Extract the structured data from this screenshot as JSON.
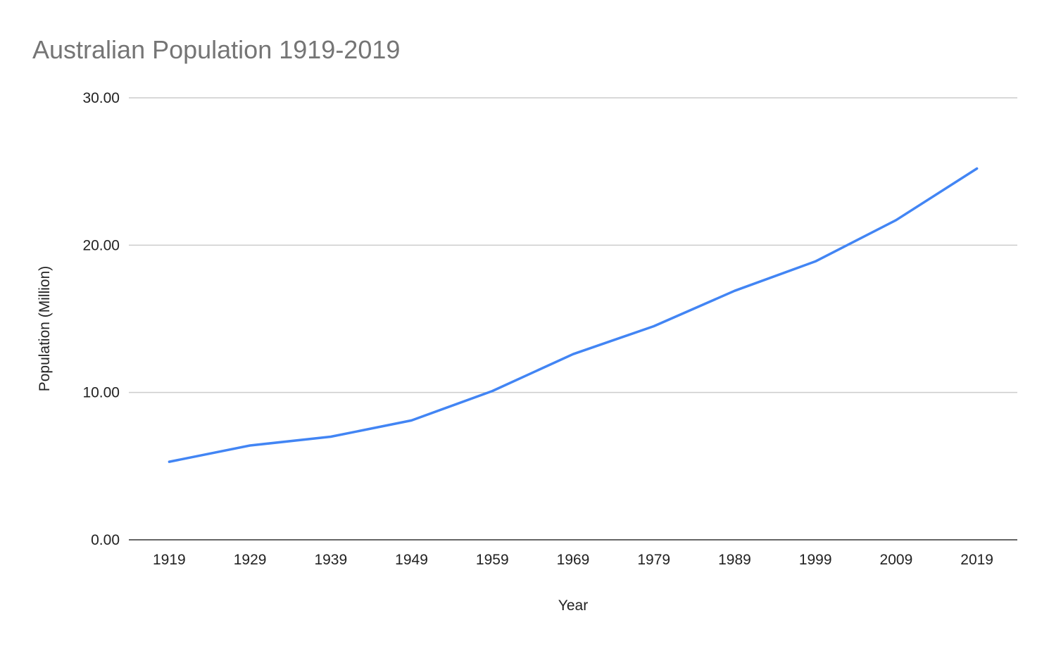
{
  "chart_data": {
    "type": "line",
    "title": "Australian Population 1919-2019",
    "xlabel": "Year",
    "ylabel": "Population (Million)",
    "ylim": [
      0,
      30
    ],
    "y_ticks": [
      "0.00",
      "10.00",
      "20.00",
      "30.00"
    ],
    "categories": [
      "1919",
      "1929",
      "1939",
      "1949",
      "1959",
      "1969",
      "1979",
      "1989",
      "1999",
      "2009",
      "2019"
    ],
    "series": [
      {
        "values": [
          5.3,
          6.4,
          7.0,
          8.1,
          10.1,
          12.6,
          14.5,
          16.9,
          18.9,
          21.7,
          25.2
        ],
        "color": "#4285f4"
      }
    ],
    "grid": true,
    "legend": "none"
  }
}
